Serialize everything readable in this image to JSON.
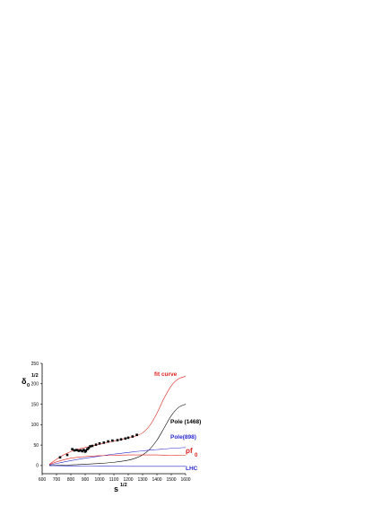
{
  "chart_data": {
    "type": "line",
    "xlabel_main": "s",
    "xlabel_sup": "1/2",
    "ylabel_main": "δ",
    "ylabel_sub": "0",
    "ylabel_sup": "1/2",
    "xlim": [
      600,
      1600
    ],
    "ylim": [
      -20,
      250
    ],
    "x_ticks": [
      600,
      700,
      800,
      900,
      1000,
      1100,
      1200,
      1300,
      1400,
      1500,
      1600
    ],
    "x_tick_labels": [
      "600",
      "700",
      "800",
      "900",
      "1000",
      "1100",
      "1200",
      "1300",
      "1400",
      "1500",
      "1600"
    ],
    "y_ticks": [
      0,
      50,
      100,
      150,
      200,
      250
    ],
    "y_tick_labels": [
      "0",
      "50",
      "100",
      "150",
      "200",
      "250"
    ],
    "grid": false,
    "series": [
      {
        "name": "fit curve",
        "color": "#e0201a",
        "kind": "line",
        "x": [
          650,
          700,
          750,
          800,
          850,
          900,
          950,
          1000,
          1050,
          1100,
          1150,
          1200,
          1250,
          1300,
          1350,
          1400,
          1450,
          1500,
          1550,
          1600
        ],
        "y": [
          3,
          15,
          26,
          34,
          40,
          44,
          48,
          52,
          56,
          60,
          64,
          68,
          72,
          80,
          98,
          128,
          165,
          195,
          212,
          218
        ]
      },
      {
        "name": "Pole (1468)",
        "color": "#000000",
        "kind": "line",
        "x": [
          650,
          700,
          800,
          900,
          1000,
          1100,
          1200,
          1250,
          1300,
          1350,
          1400,
          1450,
          1500,
          1550,
          1600
        ],
        "y": [
          0,
          0.5,
          1.5,
          3,
          5,
          8,
          13,
          18,
          26,
          40,
          62,
          92,
          122,
          142,
          150
        ]
      },
      {
        "name": "Pole(898)",
        "color": "#2a2ad0",
        "kind": "line",
        "x": [
          650,
          700,
          800,
          900,
          1000,
          1100,
          1200,
          1300,
          1400,
          1500,
          1600
        ],
        "y": [
          1,
          5,
          12,
          18,
          23,
          28,
          32,
          36,
          39,
          42,
          44
        ]
      },
      {
        "name": "ρf",
        "name_sub": "0",
        "color": "#e0201a",
        "kind": "line",
        "x": [
          650,
          700,
          800,
          900,
          1000,
          1100,
          1200,
          1300,
          1400,
          1500,
          1600
        ],
        "y": [
          2,
          9,
          18,
          22,
          24,
          25,
          26,
          26,
          26,
          25,
          25
        ]
      },
      {
        "name": "LHC",
        "color": "#2a2ad0",
        "kind": "line",
        "x": [
          650,
          800,
          1000,
          1200,
          1400,
          1600
        ],
        "y": [
          0,
          -1,
          -1.5,
          -2,
          -2,
          -2
        ]
      },
      {
        "name": "",
        "color": "#000000",
        "kind": "scatter",
        "x": [
          725,
          775,
          810,
          825,
          840,
          855,
          870,
          880,
          890,
          900,
          905,
          915,
          925,
          935,
          950,
          975,
          1000,
          1030,
          1060,
          1090,
          1125,
          1150,
          1180,
          1200,
          1230,
          1260
        ],
        "y": [
          20,
          26,
          40,
          37,
          38,
          36,
          37,
          35,
          38,
          34,
          36,
          40,
          43,
          47,
          48,
          51,
          54,
          56,
          59,
          61,
          62,
          64,
          66,
          68,
          71,
          75
        ]
      }
    ]
  }
}
